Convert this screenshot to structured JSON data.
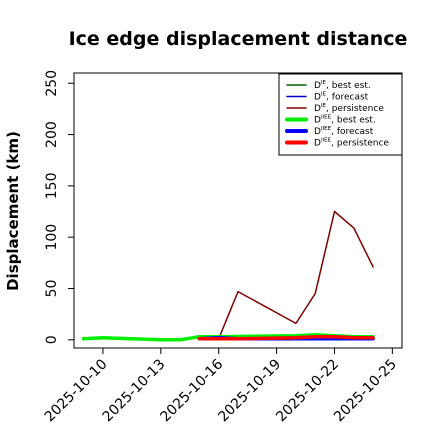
{
  "chart_data": {
    "type": "line",
    "title": "Ice edge displacement distance",
    "ylabel": "Displacement (km)",
    "xlabel": "",
    "ylim": [
      -8,
      260
    ],
    "xlim": [
      "2025-10-08T12:00",
      "2025-10-25T12:00"
    ],
    "x_ticks": [
      {
        "date": "2025-10-10",
        "label": "2025-10-10",
        "color": "#000000"
      },
      {
        "date": "2025-10-13",
        "label": "2025-10-13",
        "color": "#000000"
      },
      {
        "date": "2025-10-16",
        "label": "2025-10-16",
        "color": "#228b22"
      },
      {
        "date": "2025-10-19",
        "label": "2025-10-19",
        "color": "#000000"
      },
      {
        "date": "2025-10-22",
        "label": "2025-10-22",
        "color": "#000000"
      },
      {
        "date": "2025-10-25",
        "label": "2025-10-25",
        "color": "#000000"
      }
    ],
    "y_ticks": [
      0,
      50,
      100,
      150,
      200,
      250
    ],
    "grid": false,
    "legend_position": "top-right",
    "series": [
      {
        "name": "D^IE best est.",
        "color": "#006400",
        "width": 1.3,
        "points": []
      },
      {
        "name": "D^IE forecast",
        "color": "#0000cd",
        "width": 1.3,
        "points": [
          [
            "2025-10-15",
            1
          ],
          [
            "2025-10-16",
            1
          ],
          [
            "2025-10-17",
            1
          ],
          [
            "2025-10-18",
            1
          ],
          [
            "2025-10-20",
            1
          ],
          [
            "2025-10-21",
            1
          ],
          [
            "2025-10-22",
            1
          ],
          [
            "2025-10-23",
            1
          ],
          [
            "2025-10-24",
            1
          ]
        ]
      },
      {
        "name": "D^IE persistence",
        "color": "#800000",
        "width": 1.5,
        "points": [
          [
            "2025-10-15",
            1
          ],
          [
            "2025-10-16",
            1
          ],
          [
            "2025-10-17",
            47
          ],
          [
            "2025-10-20",
            16
          ],
          [
            "2025-10-21",
            45
          ],
          [
            "2025-10-22",
            125
          ],
          [
            "2025-10-23",
            109
          ],
          [
            "2025-10-24",
            71
          ]
        ]
      },
      {
        "name": "D^IIEE best est.",
        "color": "#00ee00",
        "width": 3.5,
        "points": [
          [
            "2025-10-09",
            1
          ],
          [
            "2025-10-10",
            2
          ],
          [
            "2025-10-13",
            0
          ],
          [
            "2025-10-14",
            0
          ],
          [
            "2025-10-15",
            3
          ],
          [
            "2025-10-16",
            3
          ],
          [
            "2025-10-20",
            4
          ],
          [
            "2025-10-21",
            5
          ],
          [
            "2025-10-22",
            4
          ],
          [
            "2025-10-23",
            3
          ],
          [
            "2025-10-24",
            3
          ]
        ]
      },
      {
        "name": "D^IIEE forecast",
        "color": "#0000ff",
        "width": 3.5,
        "points": [
          [
            "2025-10-15",
            1
          ],
          [
            "2025-10-16",
            2
          ],
          [
            "2025-10-17",
            1
          ],
          [
            "2025-10-20",
            1
          ],
          [
            "2025-10-21",
            1
          ],
          [
            "2025-10-22",
            1
          ],
          [
            "2025-10-23",
            1
          ],
          [
            "2025-10-24",
            1
          ]
        ]
      },
      {
        "name": "D^IIEE persistence",
        "color": "#ff0000",
        "width": 3.5,
        "points": [
          [
            "2025-10-15",
            1
          ],
          [
            "2025-10-16",
            1
          ],
          [
            "2025-10-17",
            1
          ],
          [
            "2025-10-20",
            2
          ],
          [
            "2025-10-21",
            3
          ],
          [
            "2025-10-22",
            3
          ],
          [
            "2025-10-23",
            2
          ],
          [
            "2025-10-24",
            2
          ]
        ]
      }
    ],
    "legend": [
      {
        "base": "D",
        "sup": "IE",
        "text": "best est.",
        "color": "#006400",
        "thick": false
      },
      {
        "base": "D",
        "sup": "IE",
        "text": "forecast",
        "color": "#0000cd",
        "thick": false
      },
      {
        "base": "D",
        "sup": "IE",
        "text": "persistence",
        "color": "#800000",
        "thick": false
      },
      {
        "base": "D",
        "sup": "IIEE",
        "text": "best est.",
        "color": "#00ee00",
        "thick": true
      },
      {
        "base": "D",
        "sup": "IIEE",
        "text": "forecast",
        "color": "#0000ff",
        "thick": true
      },
      {
        "base": "D",
        "sup": "IIEE",
        "text": "persistence",
        "color": "#ff0000",
        "thick": true
      }
    ]
  }
}
